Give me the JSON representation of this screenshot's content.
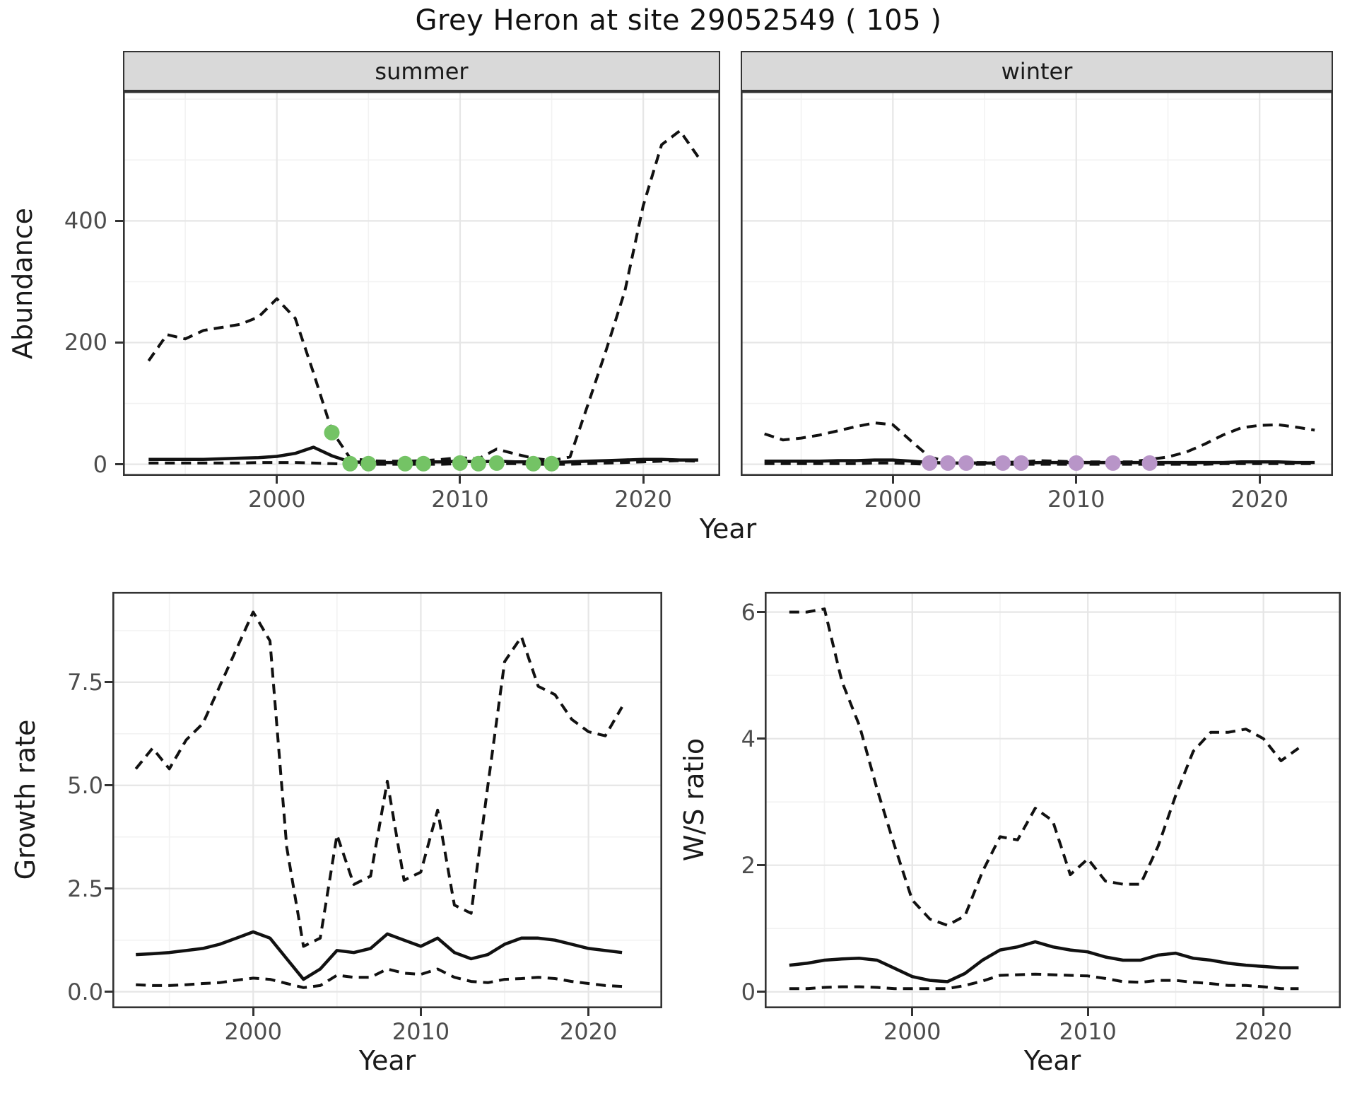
{
  "title": "Grey Heron at site 29052549 ( 105 )",
  "colors": {
    "summer_point": "#74c365",
    "winter_point": "#b895c8",
    "line": "#111111",
    "strip_bg": "#d9d9d9",
    "grid_major": "#e6e6e6",
    "grid_minor": "#f2f2f2",
    "panel_border": "#333333",
    "tick_text": "#4d4d4d"
  },
  "chart_data": [
    {
      "id": "abundance_summer",
      "type": "line",
      "facet_label": "summer",
      "xlabel": "Year",
      "ylabel": "Abundance",
      "legend": "none",
      "grid": true,
      "x_ticks": [
        2000,
        2010,
        2020
      ],
      "x_tick_labels": [
        "2000",
        "2010",
        "2020"
      ],
      "x_minor": [
        1995,
        2005,
        2015
      ],
      "y_ticks": [
        0,
        200,
        400
      ],
      "y_tick_labels": [
        "0",
        "200",
        "400"
      ],
      "y_minor": [
        100,
        300,
        500,
        600
      ],
      "xlim": [
        1991.6,
        2024.2
      ],
      "ylim": [
        -19,
        613
      ],
      "x_range": [
        1993,
        2023
      ],
      "series": [
        {
          "name": "upper_ci",
          "style": "dashed",
          "values": [
            170,
            213,
            206,
            220,
            225,
            230,
            242,
            272,
            240,
            150,
            55,
            10,
            6,
            5,
            5,
            6,
            8,
            11,
            9,
            25,
            17,
            10,
            6,
            12,
            100,
            190,
            285,
            425,
            525,
            548,
            505
          ]
        },
        {
          "name": "lower_ci",
          "style": "dashed",
          "values": [
            2,
            2,
            2,
            2,
            2,
            2,
            3,
            3,
            3,
            2,
            1,
            0,
            0,
            0,
            0,
            0,
            0,
            1,
            0,
            1,
            1,
            0,
            0,
            0,
            1,
            2,
            3,
            4,
            5,
            6,
            5
          ]
        },
        {
          "name": "mean",
          "style": "solid",
          "values": [
            8,
            8,
            8,
            8,
            9,
            10,
            11,
            13,
            18,
            28,
            14,
            4,
            3,
            3,
            3,
            4,
            4,
            5,
            4,
            5,
            4,
            4,
            3,
            4,
            5,
            6,
            7,
            8,
            8,
            7,
            7
          ]
        }
      ],
      "points": {
        "name": "summer-observations",
        "color_key": "summer_point",
        "x": [
          2003,
          2004,
          2005,
          2007,
          2008,
          2010,
          2011,
          2012,
          2014,
          2015
        ],
        "y": [
          52,
          1,
          1,
          1,
          1,
          2,
          1,
          2,
          1,
          1
        ]
      }
    },
    {
      "id": "abundance_winter",
      "type": "line",
      "facet_label": "winter",
      "xlabel": "Year",
      "ylabel": "",
      "legend": "none",
      "grid": true,
      "x_ticks": [
        2000,
        2010,
        2020
      ],
      "x_tick_labels": [
        "2000",
        "2010",
        "2020"
      ],
      "x_minor": [
        1995,
        2005,
        2015
      ],
      "y_ticks": [
        0,
        200,
        400
      ],
      "y_tick_labels": [
        "0",
        "200",
        "400"
      ],
      "y_minor": [
        100,
        300,
        500,
        600
      ],
      "xlim": [
        1991.7,
        2024.0
      ],
      "ylim": [
        -19,
        613
      ],
      "x_range": [
        1993,
        2023
      ],
      "series": [
        {
          "name": "upper_ci",
          "style": "dashed",
          "values": [
            50,
            40,
            43,
            48,
            55,
            62,
            68,
            65,
            38,
            12,
            4,
            3,
            3,
            3,
            4,
            6,
            5,
            4,
            4,
            4,
            4,
            8,
            12,
            20,
            33,
            48,
            60,
            64,
            65,
            61,
            56
          ]
        },
        {
          "name": "lower_ci",
          "style": "dashed",
          "values": [
            1,
            1,
            1,
            1,
            1,
            1,
            2,
            2,
            1,
            0,
            0,
            0,
            0,
            0,
            0,
            0,
            0,
            0,
            0,
            0,
            0,
            0,
            0,
            0,
            0,
            1,
            1,
            1,
            1,
            1,
            1
          ]
        },
        {
          "name": "mean",
          "style": "solid",
          "values": [
            5,
            5,
            5,
            5,
            6,
            6,
            7,
            7,
            5,
            3,
            2,
            2,
            2,
            2,
            2,
            3,
            3,
            3,
            3,
            3,
            3,
            3,
            3,
            3,
            3,
            3,
            4,
            4,
            4,
            3,
            3
          ]
        }
      ],
      "points": {
        "name": "winter-observations",
        "color_key": "winter_point",
        "x": [
          2002,
          2003,
          2004,
          2006,
          2007,
          2010,
          2012,
          2014
        ],
        "y": [
          2,
          2,
          2,
          2,
          2,
          2,
          2,
          2
        ]
      }
    },
    {
      "id": "growth_rate",
      "type": "line",
      "facet_label": "",
      "xlabel": "Year",
      "ylabel": "Growth rate",
      "legend": "none",
      "grid": true,
      "x_ticks": [
        2000,
        2010,
        2020
      ],
      "x_tick_labels": [
        "2000",
        "2010",
        "2020"
      ],
      "x_minor": [
        1995,
        2005,
        2015
      ],
      "y_ticks": [
        0,
        2.5,
        5,
        7.5
      ],
      "y_tick_labels": [
        "0.0",
        "2.5",
        "5.0",
        "7.5"
      ],
      "y_minor": [
        1.25,
        3.75,
        6.25,
        8.75
      ],
      "xlim": [
        1991.6,
        2024.4
      ],
      "ylim": [
        -0.4,
        9.69
      ],
      "x_range": [
        1993,
        2022
      ],
      "series": [
        {
          "name": "upper_ci",
          "style": "dashed",
          "values": [
            5.4,
            5.9,
            5.4,
            6.1,
            6.5,
            7.4,
            8.3,
            9.2,
            8.5,
            3.5,
            1.1,
            1.3,
            3.8,
            2.6,
            2.8,
            5.1,
            2.7,
            2.9,
            4.4,
            2.1,
            1.9,
            5.0,
            8.0,
            8.6,
            7.4,
            7.2,
            6.6,
            6.3,
            6.2,
            6.9
          ]
        },
        {
          "name": "lower_ci",
          "style": "dashed",
          "values": [
            0.17,
            0.15,
            0.15,
            0.17,
            0.2,
            0.22,
            0.28,
            0.33,
            0.3,
            0.2,
            0.1,
            0.15,
            0.4,
            0.35,
            0.35,
            0.55,
            0.45,
            0.42,
            0.55,
            0.35,
            0.25,
            0.22,
            0.3,
            0.32,
            0.35,
            0.32,
            0.25,
            0.2,
            0.15,
            0.13
          ]
        },
        {
          "name": "mean",
          "style": "solid",
          "values": [
            0.9,
            0.92,
            0.95,
            1.0,
            1.05,
            1.15,
            1.3,
            1.45,
            1.3,
            0.8,
            0.3,
            0.55,
            1.0,
            0.95,
            1.05,
            1.4,
            1.25,
            1.1,
            1.3,
            0.95,
            0.8,
            0.9,
            1.15,
            1.3,
            1.3,
            1.25,
            1.15,
            1.05,
            1.0,
            0.95
          ]
        }
      ],
      "points": null
    },
    {
      "id": "ws_ratio",
      "type": "line",
      "facet_label": "",
      "xlabel": "Year",
      "ylabel": "W/S ratio",
      "legend": "none",
      "grid": true,
      "x_ticks": [
        2000,
        2010,
        2020
      ],
      "x_tick_labels": [
        "2000",
        "2010",
        "2020"
      ],
      "x_minor": [
        1995,
        2005,
        2015
      ],
      "y_ticks": [
        0,
        2,
        4,
        6
      ],
      "y_tick_labels": [
        "0",
        "2",
        "4",
        "6"
      ],
      "y_minor": [
        1,
        3,
        5
      ],
      "xlim": [
        1991.6,
        2024.4
      ],
      "ylim": [
        -0.26,
        6.32
      ],
      "x_range": [
        1993,
        2022
      ],
      "series": [
        {
          "name": "upper_ci",
          "style": "dashed",
          "values": [
            6.0,
            6.0,
            6.05,
            4.9,
            4.2,
            3.2,
            2.3,
            1.45,
            1.15,
            1.05,
            1.2,
            1.9,
            2.45,
            2.4,
            2.9,
            2.7,
            1.85,
            2.1,
            1.75,
            1.7,
            1.7,
            2.3,
            3.1,
            3.8,
            4.1,
            4.1,
            4.15,
            4.0,
            3.65,
            3.85
          ]
        },
        {
          "name": "lower_ci",
          "style": "dashed",
          "values": [
            0.05,
            0.05,
            0.07,
            0.08,
            0.08,
            0.07,
            0.05,
            0.05,
            0.05,
            0.05,
            0.1,
            0.17,
            0.26,
            0.27,
            0.28,
            0.27,
            0.26,
            0.25,
            0.21,
            0.16,
            0.15,
            0.18,
            0.18,
            0.15,
            0.13,
            0.1,
            0.1,
            0.08,
            0.05,
            0.05
          ]
        },
        {
          "name": "mean",
          "style": "solid",
          "values": [
            0.42,
            0.45,
            0.5,
            0.52,
            0.53,
            0.5,
            0.37,
            0.24,
            0.18,
            0.16,
            0.29,
            0.5,
            0.66,
            0.71,
            0.79,
            0.71,
            0.66,
            0.63,
            0.55,
            0.5,
            0.5,
            0.58,
            0.61,
            0.53,
            0.5,
            0.45,
            0.42,
            0.4,
            0.38,
            0.38
          ]
        }
      ],
      "points": null
    }
  ]
}
